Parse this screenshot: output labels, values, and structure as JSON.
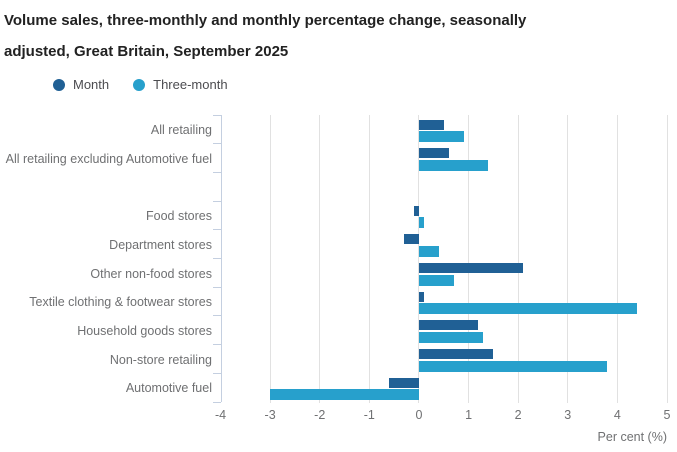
{
  "title": {
    "line1": "Volume sales, three-monthly and monthly percentage change, seasonally",
    "line2": "adjusted, Great Britain, September 2025"
  },
  "legend": [
    {
      "label": "Month",
      "color": "#206095"
    },
    {
      "label": "Three-month",
      "color": "#27a0cc"
    }
  ],
  "chart_data": {
    "type": "bar",
    "orientation": "horizontal",
    "title": "Volume sales, three-monthly and monthly percentage change, seasonally adjusted, Great Britain, September 2025",
    "xlabel": "Per cent (%)",
    "xlim": [
      -4,
      5
    ],
    "xticks": [
      -4,
      -3,
      -2,
      -1,
      0,
      1,
      2,
      3,
      4,
      5
    ],
    "grid": true,
    "legend_position": "top-left",
    "categories": [
      "All retailing",
      "All retailing excluding Automotive fuel",
      "Food stores",
      "Department stores",
      "Other non-food stores",
      "Textile clothing & footwear stores",
      "Household goods stores",
      "Non-store retailing",
      "Automotive fuel"
    ],
    "blank_row_after_index": 1,
    "series": [
      {
        "name": "Month",
        "color": "#206095",
        "values": [
          0.5,
          0.6,
          -0.1,
          -0.3,
          2.1,
          0.1,
          1.2,
          1.5,
          -0.6
        ]
      },
      {
        "name": "Three-month",
        "color": "#27a0cc",
        "values": [
          0.9,
          1.4,
          0.1,
          0.4,
          0.7,
          4.4,
          1.3,
          3.8,
          -3.0
        ]
      }
    ]
  },
  "colors": {
    "month": "#206095",
    "three_month": "#27a0cc",
    "gridline": "#e1e1e1",
    "axis": "#c4cfe0",
    "title_text": "#222222",
    "label_text": "#6f7072"
  }
}
